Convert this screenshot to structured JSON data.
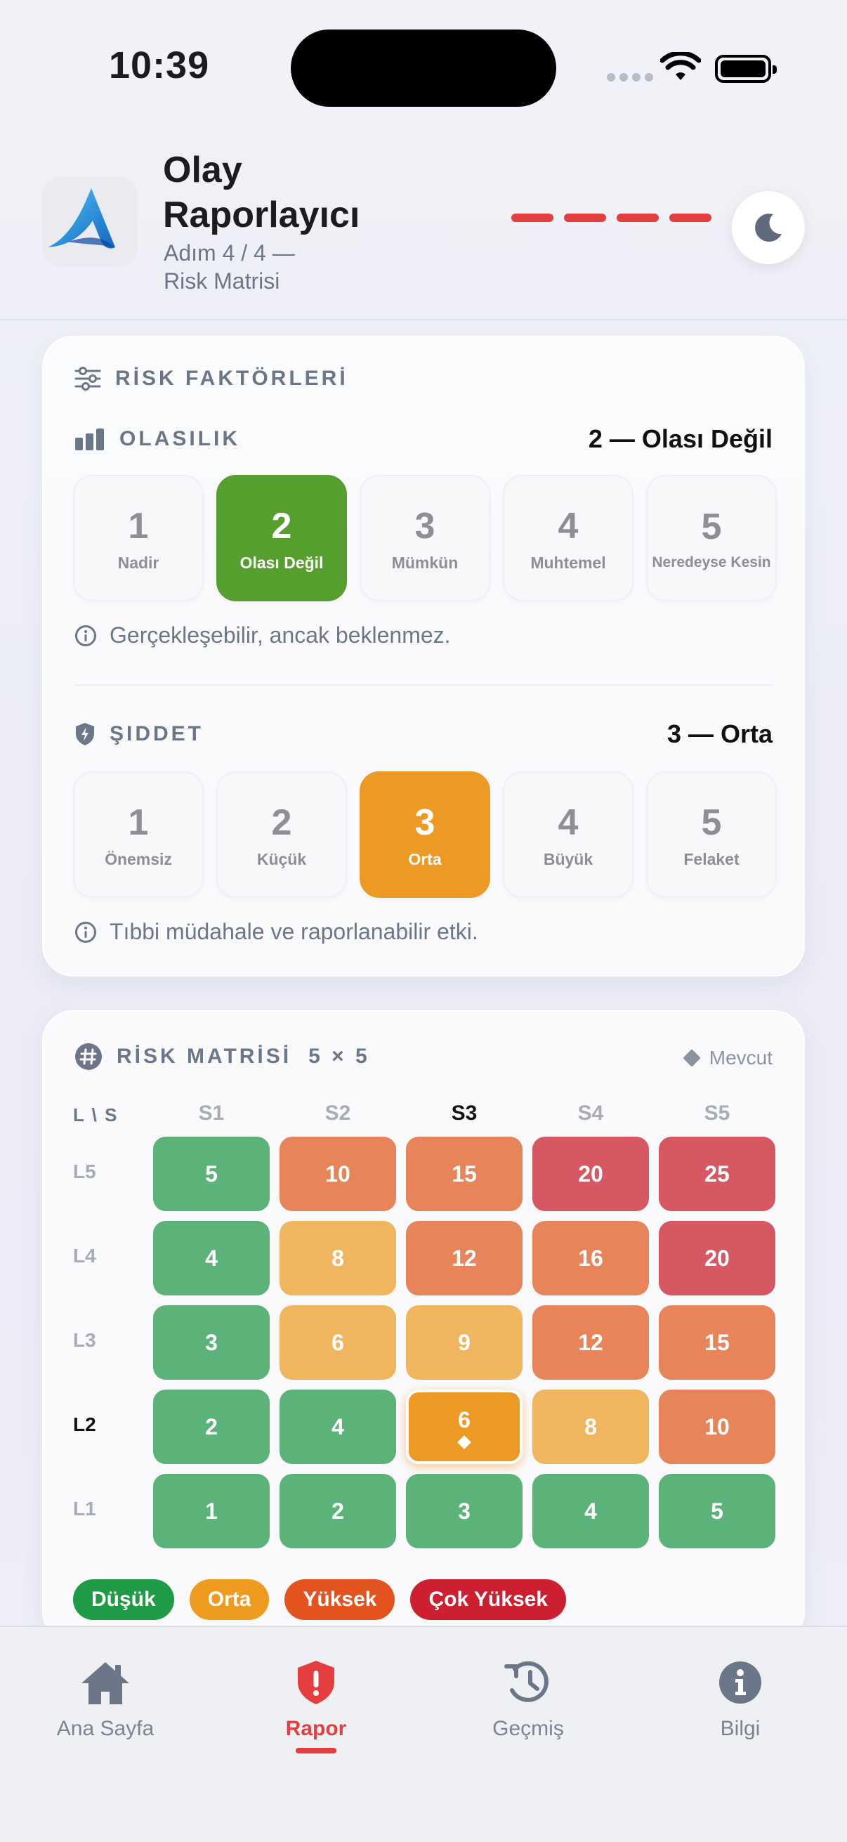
{
  "status_bar": {
    "time": "10:39"
  },
  "header": {
    "title": "Olay Raporlayıcı",
    "step": "Adım 4 / 4 —",
    "step_name": "Risk Matrisi",
    "progress_steps": 4
  },
  "risk_factors": {
    "title": "RİSK FAKTÖRLERİ",
    "likelihood": {
      "title": "OLASILIK",
      "selected_label": "2 — Olası Değil",
      "selected": 2,
      "options": [
        {
          "num": "1",
          "label": "Nadir"
        },
        {
          "num": "2",
          "label": "Olası Değil"
        },
        {
          "num": "3",
          "label": "Mümkün"
        },
        {
          "num": "4",
          "label": "Muhtemel"
        },
        {
          "num": "5",
          "label": "Neredeyse Kesin"
        }
      ],
      "hint": "Gerçekleşebilir, ancak beklenmez."
    },
    "severity": {
      "title": "ŞIDDET",
      "selected_label": "3 — Orta",
      "selected": 3,
      "options": [
        {
          "num": "1",
          "label": "Önemsiz"
        },
        {
          "num": "2",
          "label": "Küçük"
        },
        {
          "num": "3",
          "label": "Orta"
        },
        {
          "num": "4",
          "label": "Büyük"
        },
        {
          "num": "5",
          "label": "Felaket"
        }
      ],
      "hint": "Tıbbi müdahale ve raporlanabilir etki."
    }
  },
  "matrix": {
    "title": "RİSK MATRİSİ",
    "size": "5 × 5",
    "current_label": "Mevcut",
    "corner": "L \\ S",
    "columns": [
      "S1",
      "S2",
      "S3",
      "S4",
      "S5"
    ],
    "rows": [
      {
        "label": "L5",
        "values": [
          "5",
          "10",
          "15",
          "20",
          "25"
        ]
      },
      {
        "label": "L4",
        "values": [
          "4",
          "8",
          "12",
          "16",
          "20"
        ]
      },
      {
        "label": "L3",
        "values": [
          "3",
          "6",
          "9",
          "12",
          "15"
        ]
      },
      {
        "label": "L2",
        "values": [
          "2",
          "4",
          "6",
          "8",
          "10"
        ]
      },
      {
        "label": "L1",
        "values": [
          "1",
          "2",
          "3",
          "4",
          "5"
        ]
      }
    ],
    "legend": [
      {
        "label": "Düşük",
        "color": "#1f9a45"
      },
      {
        "label": "Orta",
        "color": "#ef9b1f"
      },
      {
        "label": "Yüksek",
        "color": "#e2531f"
      },
      {
        "label": "Çok Yüksek",
        "color": "#cc1f2f"
      }
    ],
    "colors": {
      "green": "#5bb37a",
      "yellow": "#efb55f",
      "orange": "#e8845a",
      "red": "#d65862",
      "current": "#ec9a24"
    }
  },
  "tabbar": {
    "items": [
      {
        "label": "Ana Sayfa",
        "icon": "home-icon"
      },
      {
        "label": "Rapor",
        "icon": "shield-alert-icon"
      },
      {
        "label": "Geçmiş",
        "icon": "history-icon"
      },
      {
        "label": "Bilgi",
        "icon": "info-icon"
      }
    ],
    "active": 1
  }
}
